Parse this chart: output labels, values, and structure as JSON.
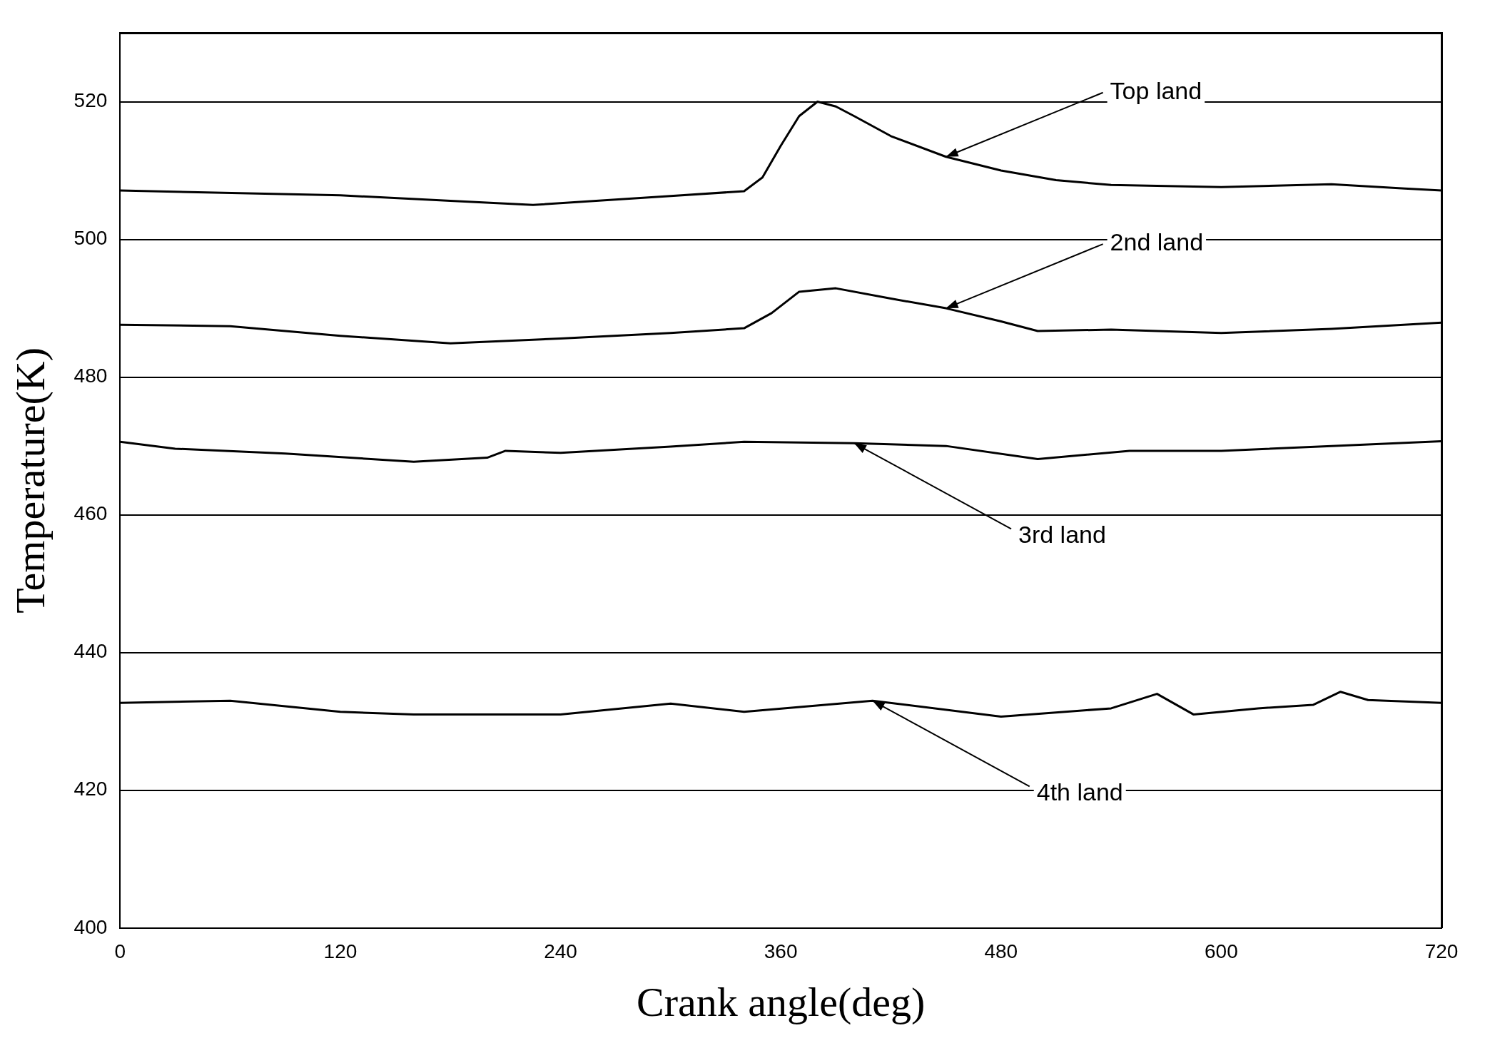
{
  "chart_data": {
    "type": "line",
    "xlabel": "Crank angle(deg)",
    "ylabel": "Temperature(K)",
    "xlim": [
      0,
      720
    ],
    "xticks": [
      0,
      120,
      240,
      360,
      480,
      600,
      720
    ],
    "ylim": [
      400,
      530
    ],
    "yticks": [
      400,
      420,
      440,
      460,
      480,
      500,
      520
    ],
    "grid": "y",
    "legend": false,
    "marker": "none",
    "line_style": "solid",
    "series": [
      {
        "color": "#000000",
        "x": [
          0,
          120,
          180,
          225,
          300,
          340,
          350,
          360,
          370,
          380,
          390,
          400,
          420,
          450,
          480,
          510,
          540,
          600,
          660,
          700,
          720
        ],
        "values": [
          507.1,
          506.4,
          505.6,
          505,
          506.3,
          507,
          509,
          513.6,
          517.9,
          520,
          519.3,
          517.9,
          515,
          512,
          510,
          508.6,
          507.9,
          507.6,
          508,
          507.4,
          507.1
        ]
      },
      {
        "color": "#000000",
        "x": [
          0,
          60,
          120,
          180,
          240,
          300,
          340,
          355,
          370,
          390,
          420,
          450,
          480,
          500,
          540,
          600,
          660,
          720
        ],
        "values": [
          487.6,
          487.4,
          486,
          484.9,
          485.6,
          486.4,
          487.1,
          489.3,
          492.4,
          492.9,
          491.4,
          490,
          488.1,
          486.7,
          486.9,
          486.4,
          487,
          487.9
        ]
      },
      {
        "color": "#000000",
        "x": [
          0,
          30,
          90,
          160,
          200,
          210,
          240,
          300,
          340,
          400,
          450,
          500,
          550,
          600,
          660,
          720
        ],
        "values": [
          470.6,
          469.6,
          468.9,
          467.7,
          468.3,
          469.3,
          469,
          469.9,
          470.6,
          470.4,
          470,
          468.1,
          469.3,
          469.3,
          470,
          470.7
        ]
      },
      {
        "color": "#000000",
        "x": [
          0,
          60,
          120,
          160,
          240,
          300,
          340,
          410,
          480,
          540,
          565,
          585,
          620,
          650,
          665,
          680,
          720
        ],
        "values": [
          432.7,
          433,
          431.4,
          431,
          431,
          432.6,
          431.4,
          433,
          430.7,
          431.9,
          434,
          431,
          431.9,
          432.4,
          434.3,
          433.1,
          432.7
        ]
      }
    ],
    "annotations": [
      {
        "text": "Top land",
        "x": 450,
        "y": 512
      },
      {
        "text": "2nd land",
        "x": 450,
        "y": 490
      },
      {
        "text": "3rd land",
        "x": 400,
        "y": 470.4
      },
      {
        "text": "4th land",
        "x": 410,
        "y": 433
      }
    ]
  }
}
